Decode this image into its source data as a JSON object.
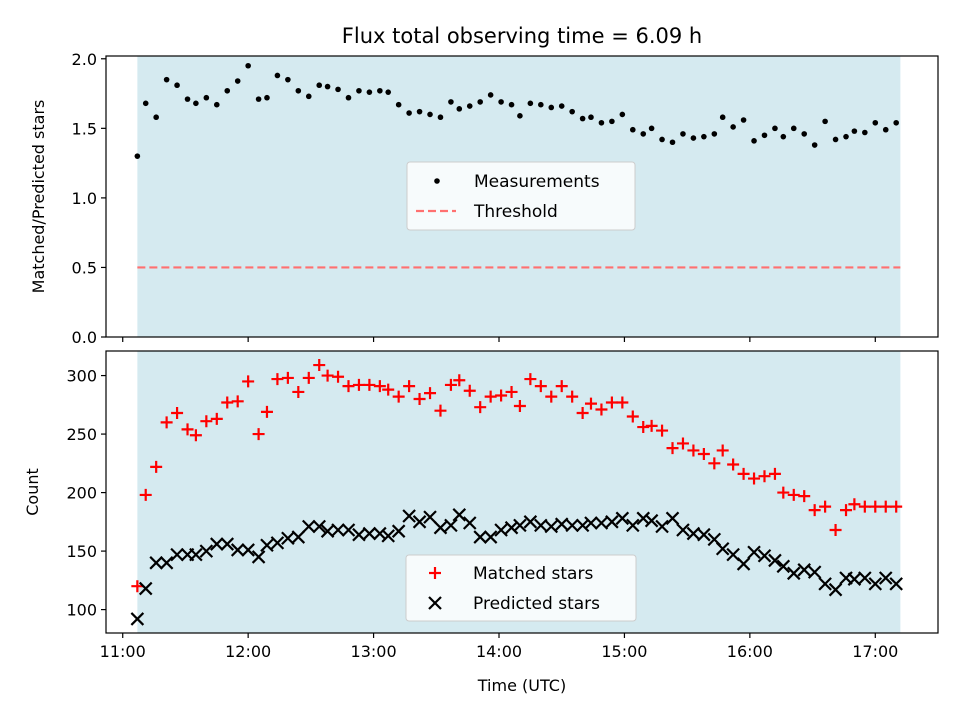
{
  "figure": {
    "title": "Flux total observing time = 6.09 h"
  },
  "colors": {
    "shade": "#d5eaf0",
    "measurement": "#000000",
    "threshold": "#ff7070",
    "matched": "#ff0000",
    "predicted": "#000000"
  },
  "chart_data": [
    {
      "type": "scatter",
      "ylabel": "Matched/Predicted stars",
      "xlabel": "",
      "xlim": [
        "10:52",
        "17:30"
      ],
      "ylim": [
        0,
        2.02
      ],
      "yticks": [
        0.0,
        0.5,
        1.0,
        1.5,
        2.0
      ],
      "ytick_labels": [
        "0.0",
        "0.5",
        "1.0",
        "1.5",
        "2.0"
      ],
      "xticks": [
        "11:00",
        "12:00",
        "13:00",
        "14:00",
        "15:00",
        "16:00",
        "17:00"
      ],
      "shaded_span": [
        "11:07",
        "17:12"
      ],
      "legend_position": "center",
      "series": [
        {
          "name": "Measurements",
          "marker": "dot",
          "x": [
            "11:07",
            "11:11",
            "11:16",
            "11:21",
            "11:26",
            "11:31",
            "11:35",
            "11:40",
            "11:45",
            "11:50",
            "11:55",
            "12:00",
            "12:05",
            "12:09",
            "12:14",
            "12:19",
            "12:24",
            "12:29",
            "12:34",
            "12:38",
            "12:43",
            "12:48",
            "12:53",
            "12:58",
            "13:03",
            "13:07",
            "13:12",
            "13:17",
            "13:22",
            "13:27",
            "13:32",
            "13:37",
            "13:41",
            "13:46",
            "13:51",
            "13:56",
            "14:01",
            "14:06",
            "14:10",
            "14:15",
            "14:20",
            "14:25",
            "14:30",
            "14:35",
            "14:40",
            "14:44",
            "14:49",
            "14:54",
            "14:59",
            "15:04",
            "15:09",
            "15:13",
            "15:18",
            "15:23",
            "15:28",
            "15:33",
            "15:38",
            "15:43",
            "15:47",
            "15:52",
            "15:57",
            "16:02",
            "16:07",
            "16:12",
            "16:16",
            "16:21",
            "16:26",
            "16:31",
            "16:36",
            "16:41",
            "16:46",
            "16:50",
            "16:55",
            "17:00",
            "17:05",
            "17:10"
          ],
          "y": [
            1.3,
            1.68,
            1.58,
            1.85,
            1.81,
            1.71,
            1.68,
            1.72,
            1.67,
            1.77,
            1.84,
            1.95,
            1.71,
            1.72,
            1.88,
            1.85,
            1.77,
            1.73,
            1.81,
            1.8,
            1.78,
            1.72,
            1.77,
            1.76,
            1.77,
            1.76,
            1.67,
            1.61,
            1.62,
            1.6,
            1.58,
            1.69,
            1.64,
            1.66,
            1.69,
            1.74,
            1.69,
            1.67,
            1.59,
            1.68,
            1.67,
            1.65,
            1.66,
            1.62,
            1.57,
            1.58,
            1.54,
            1.55,
            1.6,
            1.49,
            1.46,
            1.5,
            1.42,
            1.4,
            1.46,
            1.43,
            1.44,
            1.46,
            1.58,
            1.51,
            1.56,
            1.41,
            1.45,
            1.5,
            1.44,
            1.5,
            1.46,
            1.38,
            1.55,
            1.42,
            1.44,
            1.48,
            1.47,
            1.54,
            1.49,
            1.54
          ]
        },
        {
          "name": "Threshold",
          "style": "dashed",
          "x": [
            "11:07",
            "17:12"
          ],
          "y": [
            0.5,
            0.5
          ]
        }
      ]
    },
    {
      "type": "scatter",
      "ylabel": "Count",
      "xlabel": "Time (UTC)",
      "xlim": [
        "10:52",
        "17:30"
      ],
      "ylim": [
        80,
        321
      ],
      "yticks": [
        100,
        150,
        200,
        250,
        300
      ],
      "ytick_labels": [
        "100",
        "150",
        "200",
        "250",
        "300"
      ],
      "xticks": [
        "11:00",
        "12:00",
        "13:00",
        "14:00",
        "15:00",
        "16:00",
        "17:00"
      ],
      "xtick_labels": [
        "11:00",
        "12:00",
        "13:00",
        "14:00",
        "15:00",
        "16:00",
        "17:00"
      ],
      "shaded_span": [
        "11:07",
        "17:12"
      ],
      "legend_position": "lower center",
      "series": [
        {
          "name": "Matched stars",
          "marker": "plus",
          "x": [
            "11:07",
            "11:11",
            "11:16",
            "11:21",
            "11:26",
            "11:31",
            "11:35",
            "11:40",
            "11:45",
            "11:50",
            "11:55",
            "12:00",
            "12:05",
            "12:09",
            "12:14",
            "12:19",
            "12:24",
            "12:29",
            "12:34",
            "12:38",
            "12:43",
            "12:48",
            "12:53",
            "12:58",
            "13:03",
            "13:07",
            "13:12",
            "13:17",
            "13:22",
            "13:27",
            "13:32",
            "13:37",
            "13:41",
            "13:46",
            "13:51",
            "13:56",
            "14:01",
            "14:06",
            "14:10",
            "14:15",
            "14:20",
            "14:25",
            "14:30",
            "14:35",
            "14:40",
            "14:44",
            "14:49",
            "14:54",
            "14:59",
            "15:04",
            "15:09",
            "15:13",
            "15:18",
            "15:23",
            "15:28",
            "15:33",
            "15:38",
            "15:43",
            "15:47",
            "15:52",
            "15:57",
            "16:02",
            "16:07",
            "16:12",
            "16:16",
            "16:21",
            "16:26",
            "16:31",
            "16:36",
            "16:41",
            "16:46",
            "16:50",
            "16:55",
            "17:00",
            "17:05",
            "17:10"
          ],
          "y": [
            120,
            198,
            222,
            260,
            268,
            254,
            249,
            261,
            263,
            277,
            278,
            295,
            250,
            269,
            297,
            298,
            286,
            298,
            309,
            300,
            299,
            291,
            292,
            292,
            291,
            288,
            282,
            291,
            280,
            285,
            270,
            292,
            296,
            287,
            273,
            282,
            283,
            286,
            274,
            297,
            291,
            282,
            291,
            282,
            268,
            276,
            271,
            277,
            277,
            265,
            256,
            257,
            253,
            238,
            242,
            236,
            233,
            225,
            236,
            224,
            216,
            212,
            214,
            216,
            200,
            198,
            197,
            185,
            188,
            168,
            185,
            190,
            188,
            188,
            188,
            188
          ]
        },
        {
          "name": "Predicted stars",
          "marker": "x",
          "x": [
            "11:07",
            "11:11",
            "11:16",
            "11:21",
            "11:26",
            "11:31",
            "11:35",
            "11:40",
            "11:45",
            "11:50",
            "11:55",
            "12:00",
            "12:05",
            "12:09",
            "12:14",
            "12:19",
            "12:24",
            "12:29",
            "12:34",
            "12:38",
            "12:43",
            "12:48",
            "12:53",
            "12:58",
            "13:03",
            "13:07",
            "13:12",
            "13:17",
            "13:22",
            "13:27",
            "13:32",
            "13:37",
            "13:41",
            "13:46",
            "13:51",
            "13:56",
            "14:01",
            "14:06",
            "14:10",
            "14:15",
            "14:20",
            "14:25",
            "14:30",
            "14:35",
            "14:40",
            "14:44",
            "14:49",
            "14:54",
            "14:59",
            "15:04",
            "15:09",
            "15:13",
            "15:18",
            "15:23",
            "15:28",
            "15:33",
            "15:38",
            "15:43",
            "15:47",
            "15:52",
            "15:57",
            "16:02",
            "16:07",
            "16:12",
            "16:16",
            "16:21",
            "16:26",
            "16:31",
            "16:36",
            "16:41",
            "16:46",
            "16:50",
            "16:55",
            "17:00",
            "17:05",
            "17:10"
          ],
          "y": [
            92,
            118,
            140,
            140,
            147,
            147,
            147,
            150,
            156,
            156,
            151,
            151,
            145,
            155,
            157,
            161,
            162,
            171,
            171,
            167,
            168,
            168,
            164,
            165,
            165,
            163,
            167,
            180,
            175,
            179,
            170,
            172,
            181,
            174,
            162,
            162,
            168,
            170,
            172,
            175,
            172,
            171,
            173,
            172,
            172,
            174,
            174,
            175,
            178,
            172,
            178,
            176,
            171,
            178,
            168,
            165,
            164,
            160,
            152,
            147,
            139,
            149,
            146,
            142,
            137,
            131,
            134,
            132,
            122,
            117,
            127,
            126,
            127,
            122,
            127,
            122
          ]
        }
      ]
    }
  ]
}
